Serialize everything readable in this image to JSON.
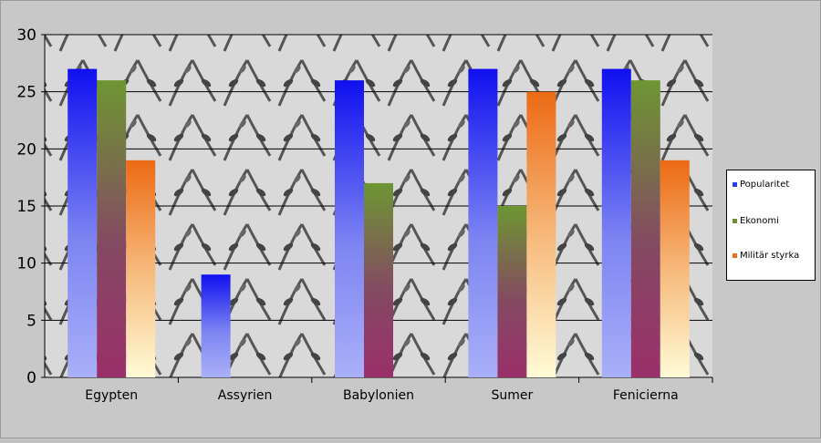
{
  "chart_data": {
    "type": "bar",
    "categories": [
      "Egypten",
      "Assyrien",
      "Babylonien",
      "Sumer",
      "Fenicierna"
    ],
    "series": [
      {
        "name": "Popularitet",
        "values": [
          27,
          9,
          26,
          27,
          27
        ],
        "color": "#2a3cf0"
      },
      {
        "name": "Ekonomi",
        "values": [
          26,
          null,
          17,
          15,
          26
        ],
        "color": "#6f8f32"
      },
      {
        "name": "Militär styrka",
        "values": [
          19,
          null,
          null,
          25,
          19
        ],
        "color": "#e8701a"
      }
    ],
    "yticks": [
      0,
      5,
      10,
      15,
      20,
      25,
      30
    ],
    "ylim": [
      0,
      30
    ],
    "grid": true,
    "legend_position": "right",
    "title": "",
    "xlabel": "",
    "ylabel": ""
  }
}
